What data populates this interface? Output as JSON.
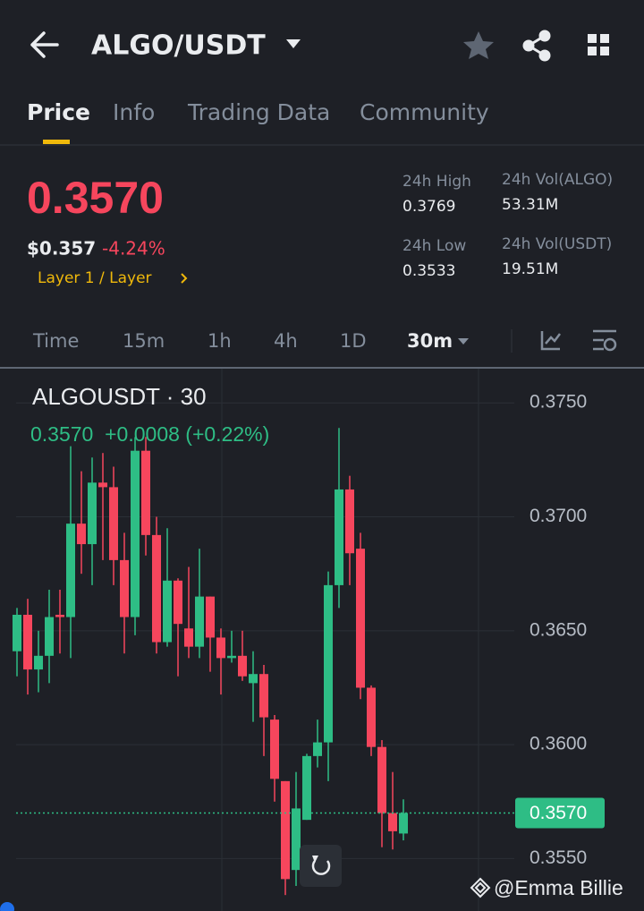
{
  "header": {
    "title": "ALGO/USDT"
  },
  "tabs": [
    "Price",
    "Info",
    "Trading Data",
    "Community"
  ],
  "price": {
    "last": "0.3570",
    "usd": "$0.357",
    "change": "-4.24%",
    "tag": "Layer 1 / Layer"
  },
  "stats": [
    {
      "label": "24h High",
      "value": "0.3769"
    },
    {
      "label": "24h Vol(ALGO)",
      "value": "53.31M"
    },
    {
      "label": "24h Low",
      "value": "0.3533"
    },
    {
      "label": "24h Vol(USDT)",
      "value": "19.51M"
    }
  ],
  "timeframes": [
    "Time",
    "15m",
    "1h",
    "4h",
    "1D",
    "30m"
  ],
  "chart_data": {
    "type": "candlestick",
    "title": "ALGOUSDT · 30",
    "legend_text": "0.3570  +0.0008 (+0.22%)",
    "up_color": "#2ebd85",
    "down_color": "#f6465d",
    "ylim": [
      0.3527,
      0.3765
    ],
    "yticks": [
      {
        "value": 0.375,
        "label": "0.3750"
      },
      {
        "value": 0.37,
        "label": "0.3700"
      },
      {
        "value": 0.365,
        "label": "0.3650"
      },
      {
        "value": 0.36,
        "label": "0.3600"
      },
      {
        "value": 0.355,
        "label": "0.3550"
      }
    ],
    "last_price": {
      "value": 0.357,
      "label": "0.3570"
    },
    "open": [
      0.3641,
      0.3657,
      0.3633,
      0.3639,
      0.3657,
      0.3656,
      0.3697,
      0.3688,
      0.3715,
      0.3713,
      0.3681,
      0.3656,
      0.3729,
      0.3692,
      0.3645,
      0.3672,
      0.3651,
      0.3643,
      0.3665,
      0.3647,
      0.3638,
      0.3639,
      0.3627,
      0.3631,
      0.3611,
      0.3584,
      0.3545,
      0.3567,
      0.3595,
      0.3601,
      0.367,
      0.3712,
      0.3686,
      0.3625,
      0.3599,
      0.357,
      0.3561
    ],
    "high": [
      0.366,
      0.3664,
      0.365,
      0.3668,
      0.3668,
      0.3731,
      0.372,
      0.3726,
      0.3728,
      0.3722,
      0.3693,
      0.3735,
      0.3735,
      0.37,
      0.3695,
      0.3673,
      0.3678,
      0.3686,
      0.3665,
      0.3651,
      0.365,
      0.365,
      0.3641,
      0.3635,
      0.3613,
      0.3584,
      0.3588,
      0.3596,
      0.3611,
      0.3676,
      0.3739,
      0.3718,
      0.3693,
      0.3626,
      0.3602,
      0.3588,
      0.3576
    ],
    "low": [
      0.363,
      0.3622,
      0.3623,
      0.3627,
      0.364,
      0.3638,
      0.3675,
      0.367,
      0.3681,
      0.367,
      0.364,
      0.3648,
      0.3683,
      0.364,
      0.3643,
      0.363,
      0.3638,
      0.3638,
      0.3632,
      0.3622,
      0.3636,
      0.3628,
      0.361,
      0.3595,
      0.3575,
      0.3534,
      0.3538,
      0.3567,
      0.359,
      0.3584,
      0.366,
      0.367,
      0.362,
      0.3595,
      0.3555,
      0.3554,
      0.3558
    ],
    "close": [
      0.3657,
      0.3633,
      0.3639,
      0.3656,
      0.3656,
      0.3697,
      0.3688,
      0.3715,
      0.3713,
      0.3681,
      0.3656,
      0.3729,
      0.3692,
      0.3645,
      0.3672,
      0.3653,
      0.3643,
      0.3665,
      0.3647,
      0.3638,
      0.3639,
      0.363,
      0.3631,
      0.3612,
      0.3585,
      0.3541,
      0.3572,
      0.3595,
      0.3601,
      0.367,
      0.3712,
      0.3684,
      0.3625,
      0.3599,
      0.357,
      0.3562,
      0.357
    ]
  },
  "watermark": "@Emma Billie"
}
